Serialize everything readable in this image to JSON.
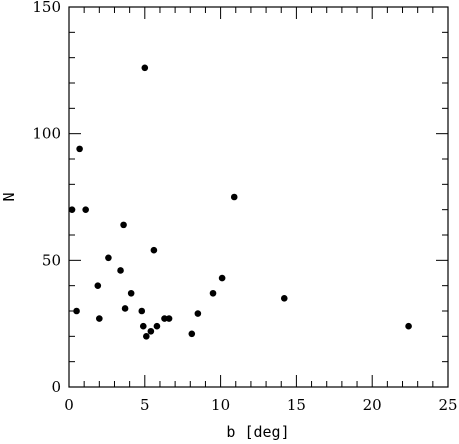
{
  "chart_data": {
    "type": "scatter",
    "title": "",
    "xlabel": "b [deg]",
    "ylabel": "N",
    "xlim": [
      0,
      25
    ],
    "ylim": [
      0,
      150
    ],
    "x_ticks": [
      0,
      5,
      10,
      15,
      20,
      25
    ],
    "y_ticks": [
      0,
      50,
      100,
      150
    ],
    "x_minor_step": 1,
    "y_minor_step": 10,
    "grid": false,
    "marker_color": "#000000",
    "series": [
      {
        "points": [
          {
            "x": 0.2,
            "y": 70
          },
          {
            "x": 0.5,
            "y": 30
          },
          {
            "x": 0.7,
            "y": 94
          },
          {
            "x": 1.1,
            "y": 70
          },
          {
            "x": 1.9,
            "y": 40
          },
          {
            "x": 2.0,
            "y": 27
          },
          {
            "x": 2.6,
            "y": 51
          },
          {
            "x": 3.4,
            "y": 46
          },
          {
            "x": 3.6,
            "y": 64
          },
          {
            "x": 3.7,
            "y": 31
          },
          {
            "x": 4.1,
            "y": 37
          },
          {
            "x": 4.8,
            "y": 30
          },
          {
            "x": 4.9,
            "y": 24
          },
          {
            "x": 5.0,
            "y": 126
          },
          {
            "x": 5.1,
            "y": 20
          },
          {
            "x": 5.4,
            "y": 22
          },
          {
            "x": 5.6,
            "y": 54
          },
          {
            "x": 5.8,
            "y": 24
          },
          {
            "x": 6.3,
            "y": 27
          },
          {
            "x": 6.6,
            "y": 27
          },
          {
            "x": 8.1,
            "y": 21
          },
          {
            "x": 8.5,
            "y": 29
          },
          {
            "x": 9.5,
            "y": 37
          },
          {
            "x": 10.1,
            "y": 43
          },
          {
            "x": 10.9,
            "y": 75
          },
          {
            "x": 14.2,
            "y": 35
          },
          {
            "x": 22.4,
            "y": 24
          }
        ]
      }
    ]
  }
}
